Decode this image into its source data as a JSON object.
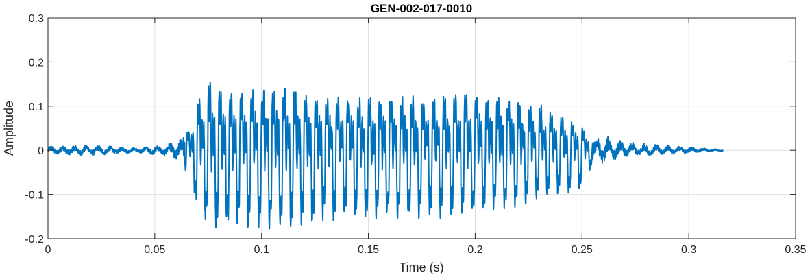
{
  "chart_data": {
    "type": "line",
    "title": "GEN-002-017-0010",
    "xlabel": "Time (s)",
    "ylabel": "Amplitude",
    "xlim": [
      0,
      0.35
    ],
    "ylim": [
      -0.2,
      0.3
    ],
    "grid": true,
    "xticks": [
      0,
      0.05,
      0.1,
      0.15,
      0.2,
      0.25,
      0.3,
      0.35
    ],
    "xtick_labels": [
      "0",
      "0.05",
      "0.1",
      "0.15",
      "0.2",
      "0.25",
      "0.3",
      "0.35"
    ],
    "yticks": [
      -0.2,
      -0.1,
      0,
      0.1,
      0.2,
      0.3
    ],
    "ytick_labels": [
      "-0.2",
      "-0.1",
      "0",
      "0.1",
      "0.2",
      "0.3"
    ],
    "color": "#0072BD",
    "series": [
      {
        "envelope": {
          "t": [
            0,
            0.02,
            0.04,
            0.055,
            0.062,
            0.067,
            0.07,
            0.076,
            0.08,
            0.09,
            0.1,
            0.11,
            0.13,
            0.15,
            0.17,
            0.18,
            0.195,
            0.2,
            0.22,
            0.23,
            0.24,
            0.25,
            0.255,
            0.26,
            0.27,
            0.28,
            0.29,
            0.3,
            0.315
          ],
          "max": [
            0.01,
            0.012,
            0.006,
            0.012,
            0.03,
            0.07,
            0.16,
            0.205,
            0.18,
            0.175,
            0.18,
            0.18,
            0.16,
            0.155,
            0.155,
            0.16,
            0.175,
            0.17,
            0.145,
            0.13,
            0.1,
            0.07,
            0.03,
            0.035,
            0.02,
            0.015,
            0.012,
            0.008,
            0.002
          ],
          "min": [
            -0.01,
            -0.012,
            -0.006,
            -0.012,
            -0.03,
            -0.08,
            -0.135,
            -0.17,
            -0.18,
            -0.17,
            -0.18,
            -0.175,
            -0.16,
            -0.155,
            -0.155,
            -0.155,
            -0.15,
            -0.14,
            -0.13,
            -0.11,
            -0.1,
            -0.09,
            -0.03,
            -0.03,
            -0.015,
            -0.012,
            -0.01,
            -0.006,
            -0.002
          ]
        },
        "f0_hz": 200,
        "duration_s": 0.316
      }
    ]
  }
}
